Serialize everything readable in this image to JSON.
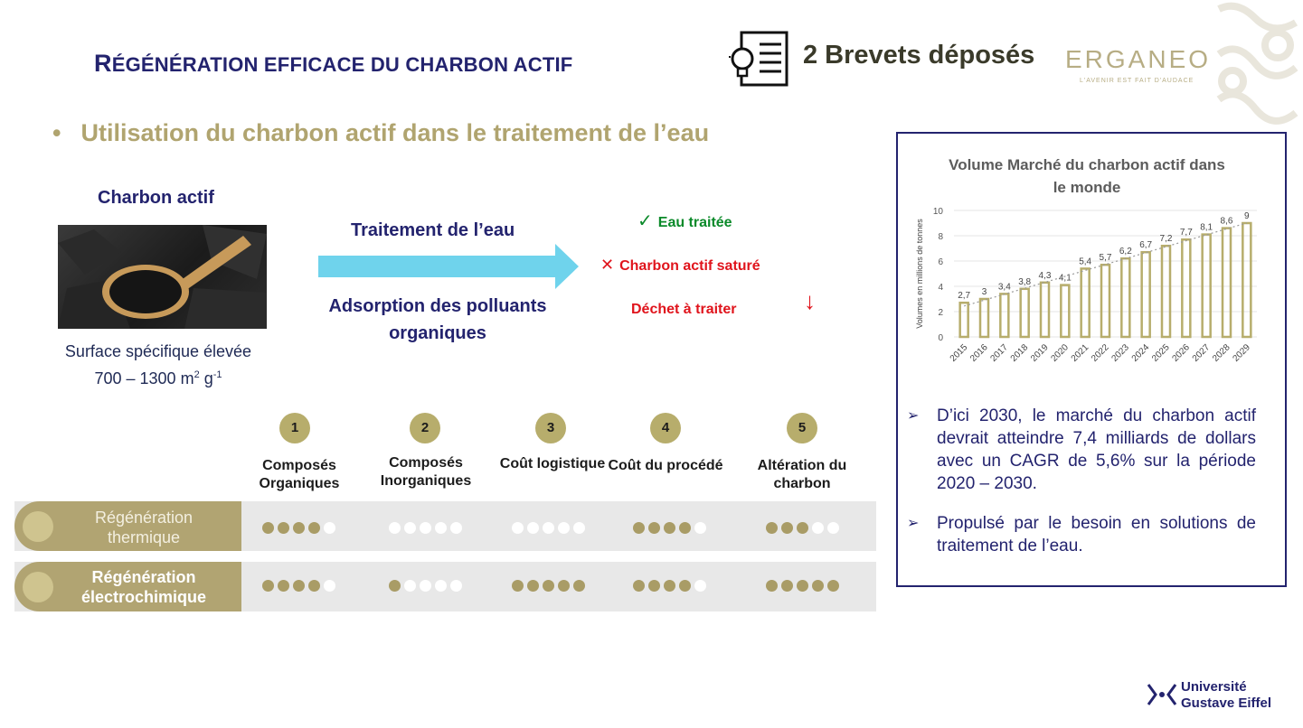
{
  "header": {
    "title_first_letter": "R",
    "title_rest": "ÉGÉNÉRATION EFFICACE DU CHARBON ACTIF",
    "patents": "2 Brevets déposés",
    "logo_text": "ERGANEO",
    "logo_tagline": "L'AVENIR EST FAIT D'AUDACE"
  },
  "bullet": "Utilisation du charbon actif dans le traitement de l’eau",
  "charbon": {
    "title": "Charbon actif",
    "surface_line1": "Surface spécifique élevée",
    "surface_line2_prefix": "700 – 1300 m",
    "sup2": "2",
    "unit_g": " g",
    "sup_minus1": "-1"
  },
  "process": {
    "traitement": "Traitement de l’eau",
    "adsorption": "Adsorption des polluants organiques",
    "check": "✓",
    "eau_traitee": "Eau traitée",
    "cross": "✕",
    "charbon_sature": "Charbon actif saturé",
    "dechet": "Déchet à traiter",
    "down_arrow": "↓"
  },
  "criteria": [
    {
      "num": "1",
      "label": "Composés Organiques"
    },
    {
      "num": "2",
      "label": "Composés Inorganiques"
    },
    {
      "num": "3",
      "label": "Coût logistique"
    },
    {
      "num": "4",
      "label": "Coût du procédé"
    },
    {
      "num": "5",
      "label": "Altération du charbon"
    }
  ],
  "rows": [
    {
      "label": "Régénération thermique",
      "scores": [
        4,
        0,
        0,
        4,
        3
      ]
    },
    {
      "label": "Régénération électrochimique",
      "scores": [
        4,
        1,
        5,
        4,
        5
      ]
    }
  ],
  "chart_data": {
    "type": "bar",
    "title": "Volume Marché du charbon actif dans le monde",
    "ylabel": "Volumes en millions de tonnes",
    "xlabel": "",
    "categories": [
      "2015",
      "2016",
      "2017",
      "2018",
      "2019",
      "2020",
      "2021",
      "2022",
      "2023",
      "2024",
      "2025",
      "2026",
      "2027",
      "2028",
      "2029"
    ],
    "values": [
      2.7,
      3,
      3.4,
      3.8,
      4.3,
      4.1,
      5.4,
      5.7,
      6.2,
      6.7,
      7.2,
      7.7,
      8.1,
      8.6,
      9
    ],
    "data_labels": [
      "2,7",
      "3",
      "3,4",
      "3,8",
      "4,3",
      "4,1",
      "5,4",
      "5,7",
      "6,2",
      "6,7",
      "7,2",
      "7,7",
      "8,1",
      "8,6",
      "9"
    ],
    "yticks": [
      "0",
      "2",
      "4",
      "6",
      "8",
      "10"
    ],
    "ylim": [
      0,
      10
    ],
    "trendline": true,
    "bar_color": "#b7ad6c"
  },
  "market": {
    "arrow": "➢",
    "point1": "D’ici 2030, le marché du charbon actif devrait atteindre 7,4 milliards de dollars avec un CAGR de 5,6% sur la période 2020 – 2030.",
    "point2": "Propulsé par le besoin en solutions de traitement de l’eau."
  },
  "footer": {
    "uni_line1": "Université",
    "uni_line2": "Gustave Eiffel"
  },
  "colors": {
    "navy": "#23236e",
    "gold": "#b7ad6c",
    "arrow_cyan": "#6fd3ec",
    "green": "#0b8a2a",
    "red": "#e0141c"
  }
}
